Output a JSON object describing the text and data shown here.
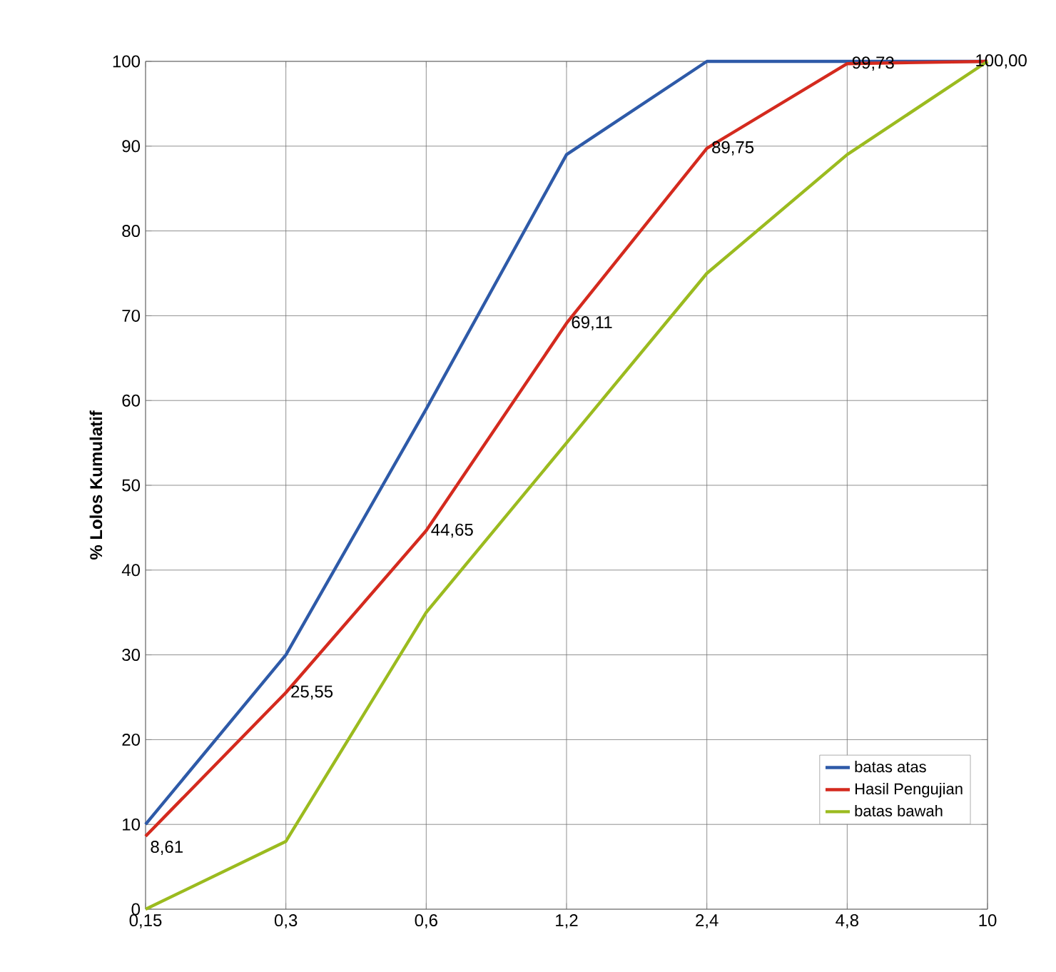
{
  "chart_data": {
    "type": "line",
    "ylabel": "% Lolos Kumulatif",
    "categories": [
      "0,15",
      "0,3",
      "0,6",
      "1,2",
      "2,4",
      "4,8",
      "10"
    ],
    "ylim": [
      0,
      100
    ],
    "yticks": [
      0,
      10,
      20,
      30,
      40,
      50,
      60,
      70,
      80,
      90,
      100
    ],
    "series": [
      {
        "name": "batas atas",
        "color": "#2e5aa8",
        "values": [
          10,
          30,
          59,
          89,
          100,
          100,
          100
        ]
      },
      {
        "name": "Hasil Pengujian",
        "color": "#d42a1e",
        "values": [
          8.61,
          25.55,
          44.65,
          69.11,
          89.75,
          99.73,
          100
        ],
        "value_labels": [
          "8,61",
          "25,55",
          "44,65",
          "69,11",
          "89,75",
          "99,73",
          "100,00"
        ]
      },
      {
        "name": "batas bawah",
        "color": "#9bbb1f",
        "values": [
          0,
          8,
          35,
          55,
          75,
          89,
          100
        ]
      }
    ],
    "grid": true,
    "legend": "bottom right",
    "marker": "none",
    "line_style": "solid"
  }
}
